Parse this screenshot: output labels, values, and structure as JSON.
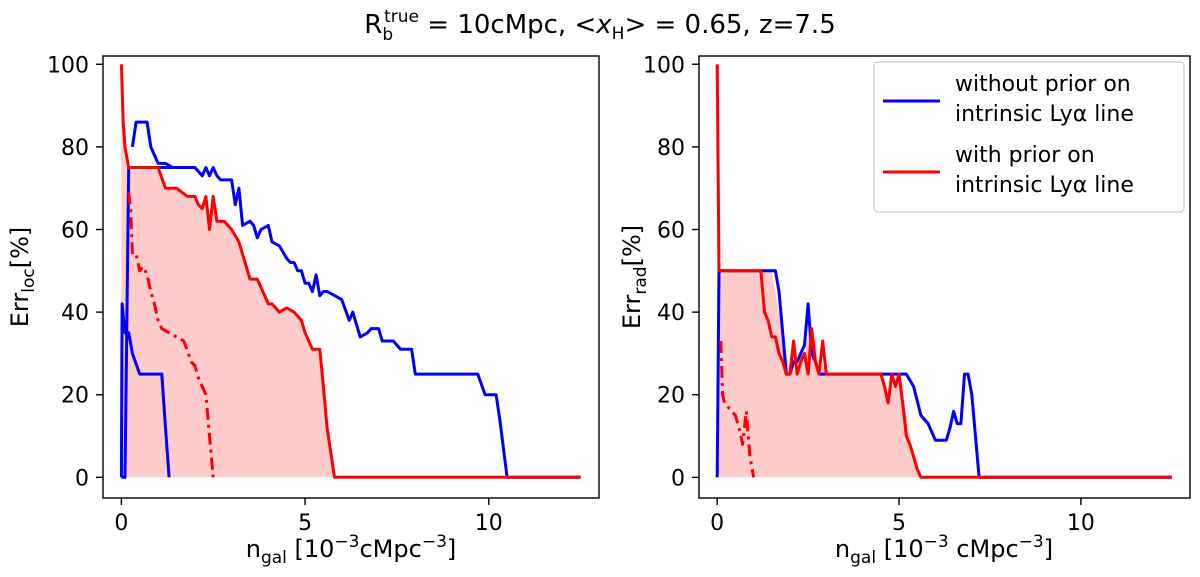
{
  "title": {
    "prefix": "R",
    "sub": "b",
    "sup": "true",
    "mid": " = 10cMpc, <",
    "xvar": "x",
    "xsub": "H",
    "suffix": "> = 0.65, z=7.5"
  },
  "colors": {
    "blue": "#0000ff",
    "red": "#ff0000",
    "fill": "#ffcccc"
  },
  "legend": [
    {
      "line1": "without prior on",
      "line2": "intrinsic Lyα line",
      "color": "#0000ff"
    },
    {
      "line1": "with prior on",
      "line2": "intrinsic Lyα line",
      "color": "#ff0000"
    }
  ],
  "chart_data": [
    {
      "type": "line",
      "xlabel": {
        "main": "n",
        "sub": "gal",
        "rest": " [10",
        "sup": "−3",
        "rest2": "cMpc",
        "sup2": "−3",
        "end": "]"
      },
      "ylabel": {
        "main": "Err",
        "sub": "loc",
        "rest": "[%]"
      },
      "xlim": [
        -0.5,
        13.0
      ],
      "ylim": [
        -5,
        102
      ],
      "xticks": [
        0,
        5,
        10
      ],
      "yticks": [
        0,
        20,
        40,
        60,
        80,
        100
      ],
      "grid": false,
      "fill_band": {
        "x": [
          0,
          0.05,
          0.1,
          0.2,
          0.5,
          1.0,
          1.2,
          1.5,
          1.8,
          2.0,
          2.1,
          2.2,
          2.3,
          2.4,
          2.5,
          2.6,
          2.8,
          3.0,
          3.2,
          3.5,
          3.7,
          3.9,
          4.0,
          4.1,
          4.3,
          4.5,
          4.7,
          4.9,
          5.0,
          5.2,
          5.4,
          5.5,
          5.6,
          5.8
        ],
        "upper": [
          100,
          86,
          80,
          75,
          75,
          75,
          70,
          70,
          68,
          68,
          66,
          65,
          68,
          60,
          68,
          62,
          62,
          60,
          57,
          48,
          48,
          44,
          42,
          42,
          40,
          41,
          40,
          38,
          35,
          31,
          31,
          22,
          12,
          0
        ],
        "lower": [
          0,
          0,
          0,
          0,
          0,
          0,
          0,
          0,
          0,
          0,
          0,
          0,
          0,
          0,
          0,
          0,
          0,
          0,
          0,
          0,
          0,
          0,
          0,
          0,
          0,
          0,
          0,
          0,
          0,
          0,
          0,
          0,
          0,
          0
        ]
      },
      "series": [
        {
          "color": "#0000ff",
          "style": "solid",
          "x": [
            0.0,
            0.02,
            0.1,
            0.2,
            0.3,
            0.4,
            0.5,
            0.6,
            0.8,
            1.0,
            1.2,
            1.4,
            1.6,
            1.8,
            2.0,
            2.2,
            2.3,
            2.4,
            2.5,
            2.6,
            2.7,
            2.8,
            3.0,
            3.1,
            3.2,
            3.3,
            3.5,
            3.6,
            3.7,
            3.8,
            4.0,
            4.1,
            4.3,
            4.5,
            4.6,
            4.7,
            4.8,
            4.9,
            5.0,
            5.1,
            5.2,
            5.3,
            5.4,
            5.5,
            5.6,
            5.8,
            6.0,
            6.2,
            6.3,
            6.5,
            6.7,
            6.8,
            6.9,
            7.0,
            7.1,
            7.2,
            7.4,
            7.6,
            7.7,
            7.9,
            8.0,
            8.2,
            8.4,
            8.6,
            8.8,
            9.0,
            9.2,
            9.5,
            9.7,
            9.9,
            10.0,
            10.2,
            10.3,
            10.5,
            12.5
          ],
          "y": [
            0,
            0,
            0,
            75,
            75,
            75,
            75,
            75,
            75,
            75,
            75,
            75,
            75,
            75,
            75,
            73,
            75,
            73,
            75,
            73,
            72,
            72,
            72,
            66,
            70,
            61,
            62,
            61,
            58,
            60,
            61,
            57,
            56,
            53,
            52,
            52,
            50,
            50,
            47,
            47,
            45,
            49,
            44,
            45,
            45,
            44,
            43,
            38,
            40,
            34,
            35,
            36,
            36,
            36,
            33,
            33,
            33,
            31,
            31,
            31,
            25,
            25,
            25,
            25,
            25,
            25,
            25,
            25,
            25,
            20,
            20,
            20,
            14,
            0,
            0
          ]
        },
        {
          "color": "#0000ff",
          "style": "solid",
          "x": [
            0.0,
            0.02,
            0.1,
            0.2,
            0.3,
            0.5,
            0.7,
            0.8,
            1.0,
            1.1,
            1.2,
            1.3
          ],
          "y": [
            0,
            42,
            35,
            35,
            30,
            25,
            25,
            25,
            25,
            25,
            12,
            0
          ]
        },
        {
          "color": "#0000ff",
          "style": "solid",
          "x": [
            0.3,
            0.4,
            0.5,
            0.7,
            0.8,
            0.9,
            1.0,
            1.2,
            1.4
          ],
          "y": [
            80,
            86,
            86,
            86,
            80,
            78,
            76,
            76,
            75
          ]
        },
        {
          "color": "#ff0000",
          "style": "solid",
          "x": [
            0,
            0.05,
            0.1,
            0.2,
            0.5,
            1.0,
            1.2,
            1.5,
            1.8,
            2.0,
            2.1,
            2.2,
            2.3,
            2.4,
            2.5,
            2.6,
            2.8,
            3.0,
            3.2,
            3.5,
            3.7,
            3.9,
            4.0,
            4.1,
            4.3,
            4.5,
            4.7,
            4.9,
            5.0,
            5.2,
            5.4,
            5.5,
            5.6,
            5.8,
            12.5
          ],
          "y": [
            100,
            86,
            80,
            75,
            75,
            75,
            70,
            70,
            68,
            68,
            66,
            65,
            68,
            60,
            68,
            62,
            62,
            60,
            57,
            48,
            48,
            44,
            42,
            42,
            40,
            41,
            40,
            38,
            35,
            31,
            31,
            22,
            12,
            0,
            0
          ]
        },
        {
          "color": "#ff0000",
          "style": "dashdot",
          "x": [
            0.2,
            0.25,
            0.3,
            0.4,
            0.5,
            0.6,
            0.7,
            0.8,
            0.9,
            1.0,
            1.1,
            1.3,
            1.5,
            1.7,
            1.9,
            2.0,
            2.1,
            2.2,
            2.3,
            2.4,
            2.5
          ],
          "y": [
            69,
            65,
            54,
            54,
            50,
            51,
            49,
            45,
            42,
            38,
            36,
            35,
            34,
            33,
            28,
            27,
            24,
            22,
            20,
            10,
            0
          ]
        }
      ]
    },
    {
      "type": "line",
      "xlabel": {
        "main": "n",
        "sub": "gal",
        "rest": " [10",
        "sup": "−3",
        "rest2": " cMpc",
        "sup2": "−3",
        "end": "]"
      },
      "ylabel": {
        "main": "Err",
        "sub": "rad",
        "rest": "[%]"
      },
      "xlim": [
        -0.5,
        13.0
      ],
      "ylim": [
        -5,
        102
      ],
      "xticks": [
        0,
        5,
        10
      ],
      "yticks": [
        0,
        20,
        40,
        60,
        80,
        100
      ],
      "grid": false,
      "fill_band": {
        "x": [
          0,
          0.05,
          1.5,
          1.6,
          1.7,
          1.8,
          1.9,
          2.0,
          2.1,
          2.2,
          2.3,
          2.4,
          2.5,
          2.6,
          2.7,
          2.8,
          2.9,
          3.0,
          3.5,
          4.0,
          4.3,
          4.5,
          4.6,
          4.7,
          4.8,
          4.9,
          5.0,
          5.2,
          5.4,
          5.6
        ],
        "upper": [
          100,
          50,
          50,
          45,
          40,
          35,
          30,
          25,
          30,
          25,
          30,
          28,
          35,
          30,
          34,
          25,
          28,
          25,
          25,
          25,
          25,
          25,
          22,
          18,
          25,
          22,
          25,
          15,
          5,
          0
        ],
        "lower": [
          0,
          0,
          0,
          0,
          0,
          0,
          0,
          0,
          0,
          0,
          0,
          0,
          0,
          0,
          0,
          0,
          0,
          0,
          0,
          0,
          0,
          0,
          0,
          0,
          0,
          0,
          0,
          0,
          0,
          0
        ]
      },
      "series": [
        {
          "color": "#0000ff",
          "style": "solid",
          "x": [
            0,
            0.05,
            1.5,
            1.6,
            1.7,
            1.8,
            1.9,
            2.0,
            2.1,
            2.2,
            2.3,
            2.4,
            2.5,
            2.6,
            2.7,
            2.8,
            3.0,
            3.5,
            4.0,
            4.5,
            5.0,
            5.2,
            5.4,
            5.6,
            5.8,
            6.0,
            6.2,
            6.3,
            6.4,
            6.5,
            6.6,
            6.7,
            6.8,
            6.9,
            7.0,
            7.2,
            12.5
          ],
          "y": [
            0,
            50,
            50,
            50,
            45,
            35,
            25,
            25,
            28,
            28,
            30,
            32,
            42,
            30,
            28,
            25,
            25,
            25,
            25,
            25,
            25,
            25,
            22,
            15,
            13,
            9,
            9,
            9,
            12,
            16,
            13,
            13,
            25,
            25,
            20,
            0,
            0
          ]
        },
        {
          "color": "#ff0000",
          "style": "solid",
          "x": [
            0,
            0.05,
            1.2,
            1.3,
            1.4,
            1.5,
            1.6,
            1.7,
            1.8,
            1.9,
            2.0,
            2.1,
            2.2,
            2.3,
            2.4,
            2.5,
            2.6,
            2.7,
            2.8,
            2.9,
            3.0,
            3.5,
            4.0,
            4.3,
            4.5,
            4.6,
            4.7,
            4.8,
            4.9,
            5.0,
            5.1,
            5.2,
            5.3,
            5.4,
            5.5,
            5.6,
            12.5
          ],
          "y": [
            100,
            50,
            50,
            40,
            38,
            34,
            34,
            30,
            28,
            25,
            25,
            33,
            25,
            28,
            30,
            25,
            36,
            28,
            25,
            33,
            25,
            25,
            25,
            25,
            25,
            22,
            18,
            25,
            22,
            25,
            18,
            10,
            8,
            5,
            2,
            0,
            0
          ]
        },
        {
          "color": "#ff0000",
          "style": "dashdot",
          "x": [
            0.1,
            0.15,
            0.2,
            0.3,
            0.4,
            0.5,
            0.6,
            0.7,
            0.8,
            0.9,
            1.0
          ],
          "y": [
            33,
            20,
            18,
            17,
            16,
            15,
            12,
            8,
            16,
            5,
            0
          ]
        }
      ]
    }
  ]
}
